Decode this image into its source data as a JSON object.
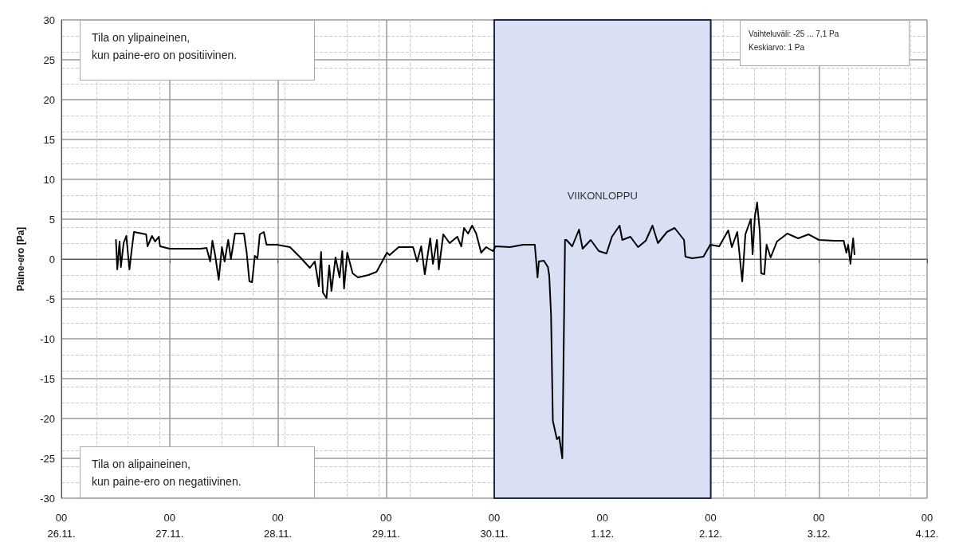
{
  "chart_data": {
    "type": "line",
    "ylabel": "Paine-ero [Pa]",
    "xlim": [
      "--11-26",
      "--12-04"
    ],
    "xticks": [
      {
        "value": "--11-26",
        "label": "00\n26.11."
      },
      {
        "value": "--11-27",
        "label": "00\n27.11."
      },
      {
        "value": "--11-28",
        "label": "00\n28.11."
      },
      {
        "value": "--11-29",
        "label": "00\n29.11."
      },
      {
        "value": "--11-30",
        "label": "00\n30.11."
      },
      {
        "value": "--12-01",
        "label": "00\n1.12."
      },
      {
        "value": "--12-02",
        "label": "00\n2.12."
      },
      {
        "value": "--12-03",
        "label": "00\n3.12."
      },
      {
        "value": "--12-04",
        "label": "00\n4.12."
      }
    ],
    "ylim": [
      -30,
      30
    ],
    "yticks": [
      -30,
      -25,
      -20,
      -15,
      -10,
      -5,
      0,
      5,
      10,
      15,
      20,
      25,
      30
    ],
    "grid": true,
    "marker": "none",
    "line_style": "solid",
    "bands": [
      {
        "axis": "x",
        "from": "--11-30",
        "to": "--12-02",
        "label": "VIIKONLOPPU",
        "color": "#dae0f3"
      }
    ],
    "annotations": [
      "Tila on ylipaineinen,\nkun paine-ero on positiivinen.",
      "Tila on alipaineinen,\nkun paine-ero on negatiivinen.",
      "Vaihteluväli: -25 ... 7,1 Pa\nKeskiarvo: 1 Pa"
    ],
    "series": [
      {
        "color": "#000000",
        "x": [
          "--11-26T12:06",
          "--11-26T12:24",
          "--11-26T12:54",
          "--11-26T13:12",
          "--11-26T13:48",
          "--11-26T14:24",
          "--11-26T15:06",
          "--11-26T15:36",
          "--11-26T16:06",
          "--11-26T18:48",
          "--11-26T19:06",
          "--11-26T20:06",
          "--11-26T20:48",
          "--11-26T21:36",
          "--11-26T21:54",
          "--11-27T00:00",
          "--11-27T03:18",
          "--11-27T06:48",
          "--11-27T08:12",
          "--11-27T09:00",
          "--11-27T09:30",
          "--11-27T10:06",
          "--11-27T10:54",
          "--11-27T11:36",
          "--11-27T12:12",
          "--11-27T13:00",
          "--11-27T13:36",
          "--11-27T14:30",
          "--11-27T16:30",
          "--11-27T17:06",
          "--11-27T17:42",
          "--11-27T18:18",
          "--11-27T18:54",
          "--11-27T19:30",
          "--11-27T20:00",
          "--11-27T20:54",
          "--11-27T21:30",
          "--11-27T23:48",
          "--11-28T02:42",
          "--11-28T05:00",
          "--11-28T07:06",
          "--11-28T08:12",
          "--11-28T09:06",
          "--11-28T09:36",
          "--11-28T10:00",
          "--11-28T10:48",
          "--11-28T11:24",
          "--11-28T11:54",
          "--11-28T12:48",
          "--11-28T13:42",
          "--11-28T14:18",
          "--11-28T14:42",
          "--11-28T15:24",
          "--11-28T16:36",
          "--11-28T17:48",
          "--11-28T20:06",
          "--11-28T21:54",
          "--11-29T00:12",
          "--11-29T00:48",
          "--11-29T02:48",
          "--11-29T06:00",
          "--11-29T06:54",
          "--11-29T07:48",
          "--11-29T08:36",
          "--11-29T09:48",
          "--11-29T10:24",
          "--11-29T11:18",
          "--11-29T11:42",
          "--11-29T12:42",
          "--11-29T14:06",
          "--11-29T15:48",
          "--11-29T16:42",
          "--11-29T17:18",
          "--11-29T18:12",
          "--11-29T19:06",
          "--11-29T20:00",
          "--11-29T21:06",
          "--11-29T22:12",
          "--11-29T23:42",
          "--11-30T00:18",
          "--11-30T03:30",
          "--11-30T06:24",
          "--11-30T09:00",
          "--11-30T09:36",
          "--11-30T09:54",
          "--11-30T11:00",
          "--11-30T11:54",
          "--11-30T12:12",
          "--11-30T12:36",
          "--11-30T13:00",
          "--11-30T13:54",
          "--11-30T14:24",
          "--11-30T15:06",
          "--11-30T15:42",
          "--11-30T16:00",
          "--11-30T17:18",
          "--11-30T18:48",
          "--11-30T19:36",
          "--11-30T21:24",
          "--11-30T23:12",
          "--12-01T00:54",
          "--12-01T02:06",
          "--12-01T03:48",
          "--12-01T04:24",
          "--12-01T06:12",
          "--12-01T07:54",
          "--12-01T09:36",
          "--12-01T11:06",
          "--12-01T12:18",
          "--12-01T14:18",
          "--12-01T16:00",
          "--12-01T18:06",
          "--12-01T18:24",
          "--12-01T19:54",
          "--12-01T22:24",
          "--12-01T23:54",
          "--12-02T01:54",
          "--12-02T03:54",
          "--12-02T04:42",
          "--12-02T05:54",
          "--12-02T07:00",
          "--12-02T07:42",
          "--12-02T08:54",
          "--12-02T09:18",
          "--12-02T09:48",
          "--12-02T10:18",
          "--12-02T10:54",
          "--12-02T11:12",
          "--12-02T11:54",
          "--12-02T12:24",
          "--12-02T13:18",
          "--12-02T14:42",
          "--12-02T17:00",
          "--12-02T19:24",
          "--12-02T21:42",
          "--12-03T00:00",
          "--12-03T03:30",
          "--12-03T05:30",
          "--12-03T06:06",
          "--12-03T06:30",
          "--12-03T07:00",
          "--12-03T07:36",
          "--12-03T07:54"
        ],
        "values": [
          2.4,
          -1.3,
          2.2,
          -1.0,
          2.0,
          2.9,
          -1.3,
          1.2,
          3.4,
          3.1,
          1.6,
          2.9,
          2.2,
          2.8,
          1.6,
          1.3,
          1.3,
          1.3,
          1.4,
          -0.3,
          2.3,
          0.5,
          -2.6,
          1.5,
          -0.3,
          2.4,
          0.0,
          3.2,
          3.2,
          0.8,
          -2.8,
          -2.9,
          0.4,
          0.1,
          3.1,
          3.4,
          1.8,
          1.8,
          1.5,
          0.2,
          -1.1,
          -0.3,
          -3.4,
          0.9,
          -4.2,
          -4.9,
          -0.8,
          -4.0,
          0.2,
          -2.3,
          1.0,
          -3.7,
          0.8,
          -1.8,
          -2.3,
          -2.0,
          -1.6,
          0.8,
          0.5,
          1.5,
          1.5,
          -0.3,
          1.6,
          -1.9,
          2.6,
          -0.6,
          2.4,
          -1.3,
          3.1,
          2.0,
          2.8,
          1.6,
          3.9,
          3.2,
          4.2,
          3.2,
          0.8,
          1.5,
          1.0,
          1.6,
          1.5,
          1.8,
          1.8,
          -2.3,
          -0.3,
          -0.2,
          -1.0,
          -2.1,
          -7.0,
          -20.3,
          -22.6,
          -22.3,
          -25.0,
          2.4,
          2.4,
          1.6,
          3.7,
          1.3,
          2.4,
          1.0,
          0.7,
          2.8,
          4.2,
          2.4,
          2.8,
          1.5,
          2.3,
          4.2,
          2.0,
          3.4,
          3.9,
          2.4,
          0.3,
          0.1,
          0.3,
          1.8,
          1.6,
          3.6,
          1.5,
          3.4,
          -2.8,
          3.1,
          5.0,
          0.6,
          5.3,
          7.1,
          3.4,
          -1.8,
          -1.9,
          1.8,
          0.2,
          2.2,
          3.2,
          2.6,
          3.1,
          2.4,
          2.3,
          2.3,
          0.8,
          1.8,
          -0.6,
          2.6,
          0.6
        ]
      }
    ]
  }
}
